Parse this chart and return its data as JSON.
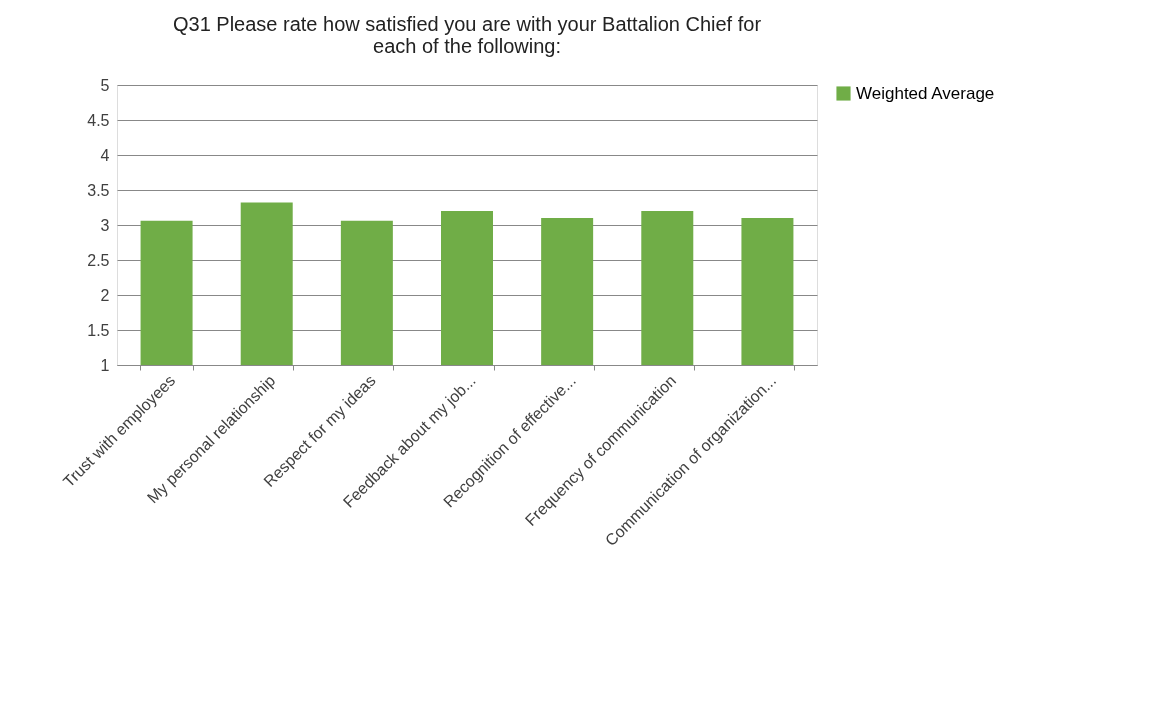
{
  "chart_data": {
    "type": "bar",
    "title": "Q31 Please rate how satisfied you are with your Battalion Chief for each of the following:",
    "categories": [
      "Trust with employees",
      "My personal relationship",
      "Respect for my ideas",
      "Feedback about my job...",
      "Recognition of effective...",
      "Frequency of communication",
      "Communication of organization..."
    ],
    "series": [
      {
        "name": "Weighted Average",
        "color": "#70ad47",
        "values": [
          3.06,
          3.32,
          3.06,
          3.2,
          3.1,
          3.2,
          3.1
        ]
      }
    ],
    "ylim": [
      1,
      5
    ],
    "yticks": [
      1,
      1.5,
      2,
      2.5,
      3,
      3.5,
      4,
      4.5,
      5
    ],
    "grid": "y",
    "legend": "right"
  }
}
